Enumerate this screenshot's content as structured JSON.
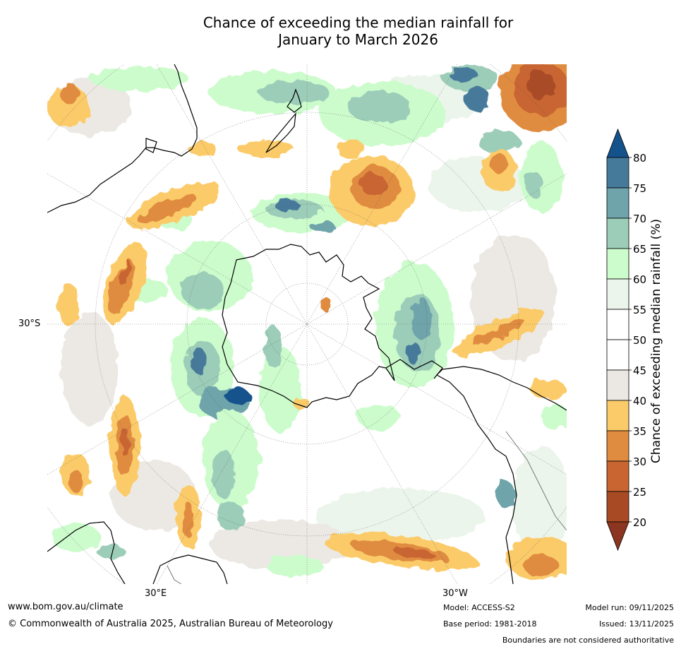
{
  "title_line1": "Chance of exceeding the median rainfall for",
  "title_line2": "January to March 2026",
  "labels": {
    "lat": "30°S",
    "lon_east": "30°E",
    "lon_west": "30°W"
  },
  "legend": {
    "title": "Chance of exceeding median rainfall (%)",
    "ticks": [
      "80",
      "75",
      "70",
      "65",
      "60",
      "55",
      "50",
      "45",
      "40",
      "35",
      "30",
      "25",
      "20"
    ],
    "bin_colors": [
      "#14528c",
      "#467a9a",
      "#6ea4aa",
      "#9ccdb8",
      "#ccfccc",
      "#ebf5eb",
      "#ffffff",
      "#ffffff",
      "#ebe7e2",
      "#fbcb69",
      "#e08c40",
      "#c86530",
      "#a84b25",
      "#8c3520"
    ]
  },
  "footer": {
    "website": "www.bom.gov.au/climate",
    "copyright": "© Commonwealth of Australia 2025, Australian Bureau of Meteorology",
    "model": "Model: ACCESS-S2",
    "base_period": "Base period: 1981-2018",
    "model_run": "Model run: 09/11/2025",
    "issued": "Issued: 13/11/2025",
    "disclaimer": "Boundaries are not considered authoritative"
  }
}
